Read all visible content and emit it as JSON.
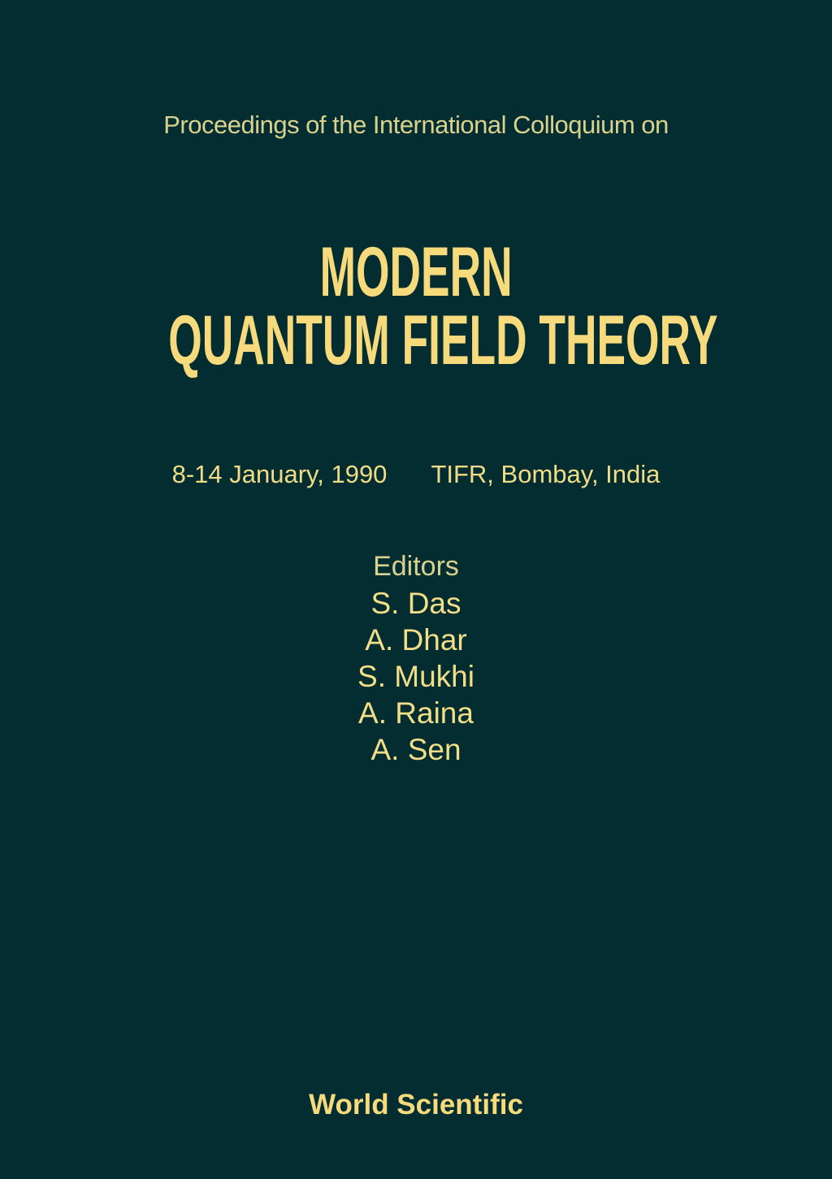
{
  "cover": {
    "series_line": "Proceedings of the International Colloquium on",
    "title_line1": "MODERN",
    "title_line2": "QUANTUM FIELD THEORY",
    "dates": "8-14 January, 1990",
    "venue": "TIFR, Bombay, India",
    "editors_label": "Editors",
    "editors": [
      "S. Das",
      "A. Dhar",
      "S. Mukhi",
      "A. Raina",
      "A. Sen"
    ],
    "publisher": "World Scientific",
    "colors": {
      "background": "#032d31",
      "title": "#f6da7b",
      "text": "#f3de88"
    }
  }
}
